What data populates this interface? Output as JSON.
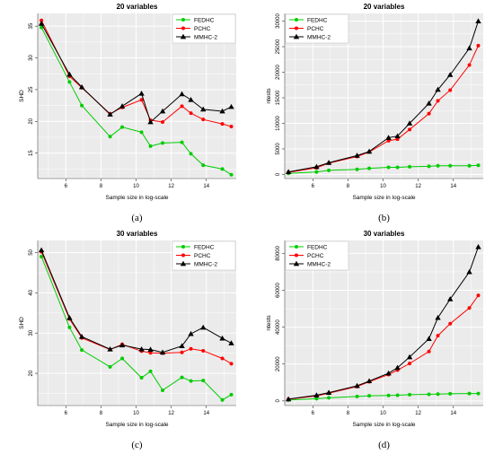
{
  "chart_data": [
    {
      "type": "line",
      "panel": "a",
      "caption": "(a)",
      "title": "20 variables",
      "xlabel": "Sample size in log-scale",
      "ylabel": "SHD",
      "xlim": [
        4.4,
        15.7
      ],
      "ylim": [
        11,
        37
      ],
      "xticks": [
        6,
        8,
        10,
        12,
        14
      ],
      "yticks": [
        15,
        20,
        25,
        30,
        35
      ],
      "grid": true,
      "legend": "top-right",
      "x": [
        4.61,
        6.21,
        6.91,
        8.52,
        9.21,
        10.31,
        10.82,
        11.51,
        12.61,
        13.12,
        13.82,
        14.91,
        15.42
      ],
      "series": [
        {
          "name": "FEDHC",
          "color": "#00cc00",
          "marker": "circle",
          "values": [
            34.8,
            26.2,
            22.5,
            17.6,
            19.1,
            18.3,
            16.1,
            16.6,
            16.7,
            14.9,
            13.1,
            12.5,
            11.6
          ]
        },
        {
          "name": "PCHC",
          "color": "#ff0000",
          "marker": "circle",
          "values": [
            35.9,
            27.1,
            25.3,
            21.2,
            22.2,
            23.4,
            20.2,
            19.9,
            22.4,
            21.3,
            20.3,
            19.6,
            19.2
          ]
        },
        {
          "name": "MMHC-2",
          "color": "#000000",
          "marker": "triangle",
          "values": [
            35.4,
            27.4,
            25.4,
            21.1,
            22.4,
            24.4,
            19.9,
            21.6,
            24.3,
            23.4,
            21.9,
            21.6,
            22.3
          ]
        }
      ]
    },
    {
      "type": "line",
      "panel": "b",
      "caption": "(b)",
      "title": "20 variables",
      "xlabel": "Sample size in log-scale",
      "ylabel": "ntests",
      "xlim": [
        4.4,
        15.7
      ],
      "ylim": [
        -800,
        31500
      ],
      "xticks": [
        6,
        8,
        10,
        12,
        14
      ],
      "yticks": [
        0,
        5000,
        10000,
        15000,
        20000,
        25000,
        30000
      ],
      "grid": true,
      "legend": "top-left",
      "x": [
        4.61,
        6.21,
        6.91,
        8.52,
        9.21,
        10.31,
        10.82,
        11.51,
        12.61,
        13.12,
        13.82,
        14.91,
        15.42
      ],
      "series": [
        {
          "name": "FEDHC",
          "color": "#00cc00",
          "marker": "circle",
          "values": [
            200,
            500,
            800,
            1000,
            1200,
            1400,
            1400,
            1500,
            1600,
            1700,
            1700,
            1700,
            1800
          ]
        },
        {
          "name": "PCHC",
          "color": "#ff0000",
          "marker": "circle",
          "values": [
            400,
            1300,
            2200,
            3500,
            4400,
            6600,
            6900,
            8800,
            11900,
            14400,
            16500,
            21400,
            25200
          ]
        },
        {
          "name": "MMHC-2",
          "color": "#000000",
          "marker": "triangle",
          "values": [
            500,
            1500,
            2300,
            3700,
            4500,
            7200,
            7500,
            10000,
            13900,
            16600,
            19500,
            24700,
            30000
          ]
        }
      ]
    },
    {
      "type": "line",
      "panel": "c",
      "caption": "(c)",
      "title": "30 variables",
      "xlabel": "Sample size in log-scale",
      "ylabel": "SHD",
      "xlim": [
        4.4,
        15.7
      ],
      "ylim": [
        12,
        53
      ],
      "xticks": [
        6,
        8,
        10,
        12,
        14
      ],
      "yticks": [
        20,
        30,
        40,
        50
      ],
      "grid": true,
      "legend": "top-right",
      "x": [
        4.61,
        6.21,
        6.91,
        8.52,
        9.21,
        10.31,
        10.82,
        11.51,
        12.61,
        13.12,
        13.82,
        14.91,
        15.42
      ],
      "series": [
        {
          "name": "FEDHC",
          "color": "#00cc00",
          "marker": "circle",
          "values": [
            49.0,
            31.4,
            25.8,
            21.6,
            23.7,
            18.9,
            20.5,
            15.8,
            19.0,
            18.1,
            18.2,
            13.4,
            14.7
          ]
        },
        {
          "name": "PCHC",
          "color": "#ff0000",
          "marker": "circle",
          "values": [
            50.2,
            33.5,
            28.8,
            25.9,
            27.2,
            25.5,
            25.1,
            25.0,
            25.2,
            26.1,
            25.6,
            23.7,
            22.4
          ]
        },
        {
          "name": "MMHC-2",
          "color": "#000000",
          "marker": "triangle",
          "values": [
            50.6,
            33.8,
            29.1,
            26.0,
            27.0,
            26.0,
            25.9,
            25.2,
            26.8,
            29.8,
            31.4,
            28.7,
            27.5
          ]
        }
      ]
    },
    {
      "type": "line",
      "panel": "d",
      "caption": "(d)",
      "title": "30 variables",
      "xlabel": "Sample size in log-scale",
      "ylabel": "ntests",
      "xlim": [
        4.4,
        15.7
      ],
      "ylim": [
        -2500,
        87000
      ],
      "xticks": [
        6,
        8,
        10,
        12,
        14
      ],
      "yticks": [
        0,
        20000,
        40000,
        60000,
        80000
      ],
      "grid": true,
      "legend": "top-left",
      "x": [
        4.61,
        6.21,
        6.91,
        8.52,
        9.21,
        10.31,
        10.82,
        11.51,
        12.61,
        13.12,
        13.82,
        14.91,
        15.42
      ],
      "series": [
        {
          "name": "FEDHC",
          "color": "#00cc00",
          "marker": "circle",
          "values": [
            500,
            1200,
            1700,
            2400,
            2800,
            3000,
            3100,
            3400,
            3600,
            3700,
            3900,
            4000,
            4000
          ]
        },
        {
          "name": "PCHC",
          "color": "#ff0000",
          "marker": "circle",
          "values": [
            900,
            2700,
            4200,
            7800,
            10400,
            14300,
            16700,
            20300,
            26800,
            35400,
            41900,
            50400,
            57200
          ]
        },
        {
          "name": "MMHC-2",
          "color": "#000000",
          "marker": "triangle",
          "values": [
            1000,
            3100,
            4500,
            8200,
            10800,
            15000,
            18000,
            23800,
            33700,
            45100,
            55200,
            69900,
            83500
          ]
        }
      ]
    }
  ]
}
